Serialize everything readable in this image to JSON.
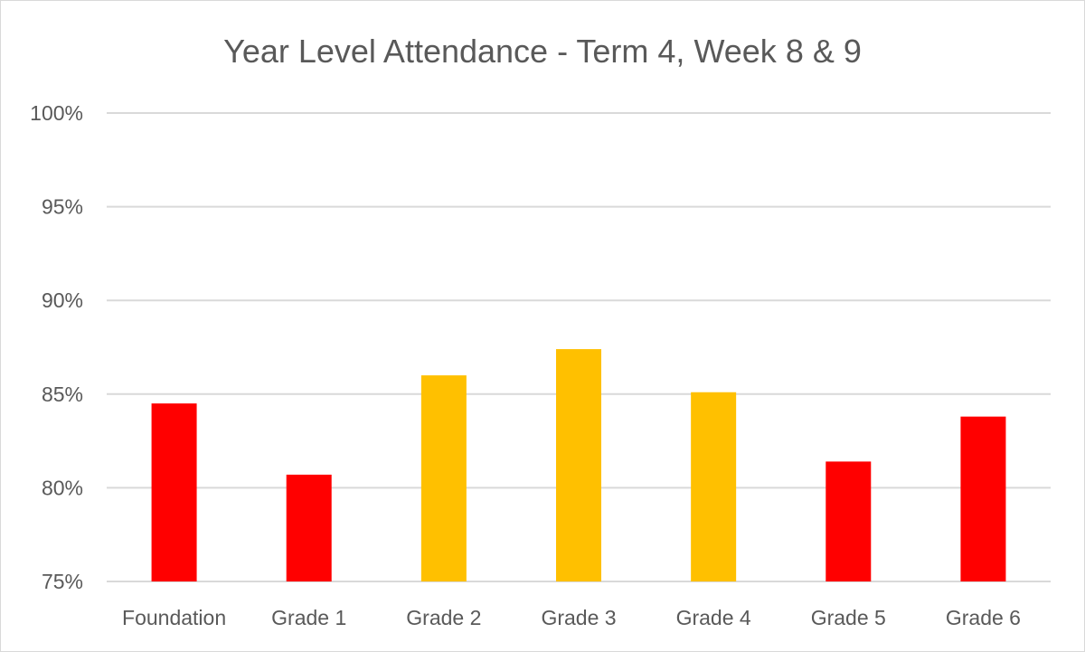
{
  "chart_data": {
    "type": "bar",
    "title": "Year Level Attendance - Term 4, Week 8 & 9",
    "xlabel": "",
    "ylabel": "",
    "categories": [
      "Foundation",
      "Grade 1",
      "Grade 2",
      "Grade 3",
      "Grade 4",
      "Grade 5",
      "Grade 6"
    ],
    "values": [
      84.5,
      80.7,
      86.0,
      87.4,
      85.1,
      81.4,
      83.8
    ],
    "bar_colors": [
      "#FF0000",
      "#FF0000",
      "#FFC000",
      "#FFC000",
      "#FFC000",
      "#FF0000",
      "#FF0000"
    ],
    "ylim": [
      75,
      100
    ],
    "yticks": [
      75,
      80,
      85,
      90,
      95,
      100
    ],
    "ytick_labels": [
      "75%",
      "80%",
      "85%",
      "90%",
      "95%",
      "100%"
    ],
    "grid": true,
    "legend": "none"
  }
}
